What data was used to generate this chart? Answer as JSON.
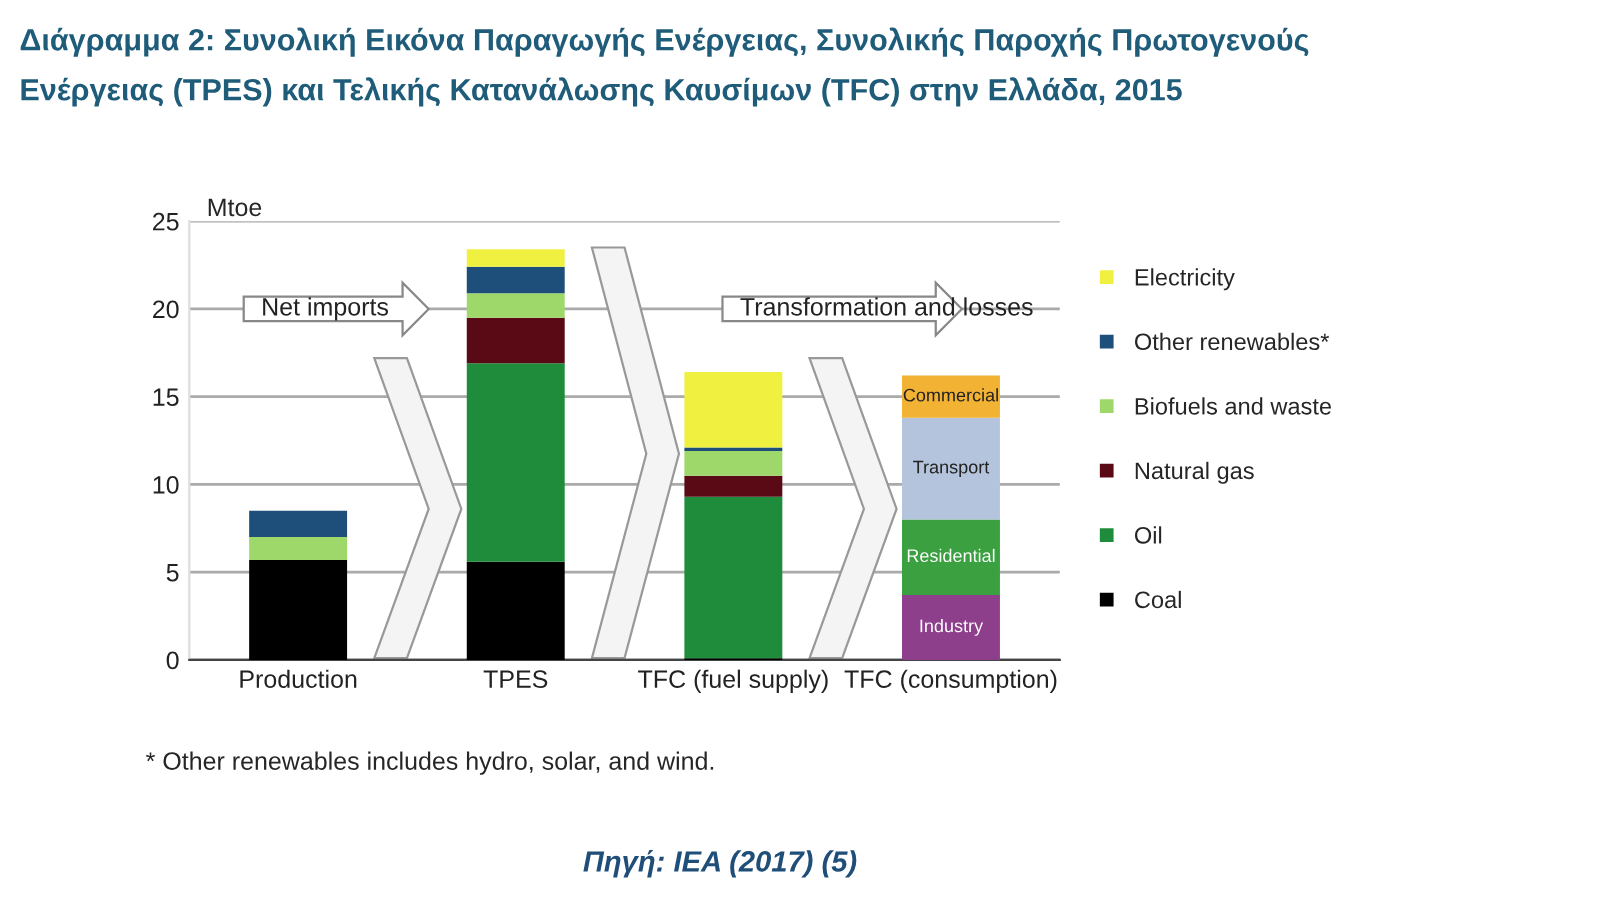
{
  "chart_data": {
    "type": "bar",
    "stacked": true,
    "title": "Διάγραμμα 2: Συνολική Εικόνα Παραγωγής Ενέργειας, Συνολικής Παροχής Πρωτογενούς\nΕνέργειας (TPES) και Τελικής Κατανάλωσης Καυσίμων (TFC) στην Ελλάδα, 2015",
    "ylabel": "Mtoe",
    "categories": [
      "Production",
      "TPES",
      "TFC (fuel supply)",
      "TFC (consumption)"
    ],
    "series": [
      {
        "name": "Coal",
        "color": "#000000",
        "values": [
          5.7,
          5.6,
          0.1,
          null
        ]
      },
      {
        "name": "Oil",
        "color": "#1e8c3a",
        "values": [
          null,
          11.3,
          9.2,
          null
        ]
      },
      {
        "name": "Natural gas",
        "color": "#5a0a14",
        "values": [
          null,
          2.6,
          1.2,
          null
        ]
      },
      {
        "name": "Biofuels and waste",
        "color": "#9ed86a",
        "values": [
          1.3,
          1.4,
          1.4,
          null
        ]
      },
      {
        "name": "Other renewables*",
        "color": "#1d4f7a",
        "values": [
          1.5,
          1.5,
          0.2,
          null
        ]
      },
      {
        "name": "Electricity",
        "color": "#f0f040",
        "values": [
          null,
          1.0,
          4.3,
          null
        ]
      },
      {
        "name": "Industry",
        "color": "#8e3f8c",
        "values": [
          null,
          null,
          null,
          3.7
        ]
      },
      {
        "name": "Residential",
        "color": "#3aa040",
        "values": [
          null,
          null,
          null,
          4.3
        ]
      },
      {
        "name": "Transport",
        "color": "#b4c4dc",
        "values": [
          null,
          null,
          null,
          5.8
        ]
      },
      {
        "name": "Commercial",
        "color": "#f2b233",
        "values": [
          null,
          null,
          null,
          2.4
        ]
      }
    ],
    "ylim": [
      0,
      25
    ],
    "yticks": [
      0,
      5,
      10,
      15,
      20,
      25
    ],
    "grid": "y",
    "legend": "right",
    "annotations": [
      "Net imports",
      "Transformation and losses",
      "* Other renewables includes hydro, solar, and wind.",
      "Πηγή: IEA (2017) (5)"
    ]
  }
}
